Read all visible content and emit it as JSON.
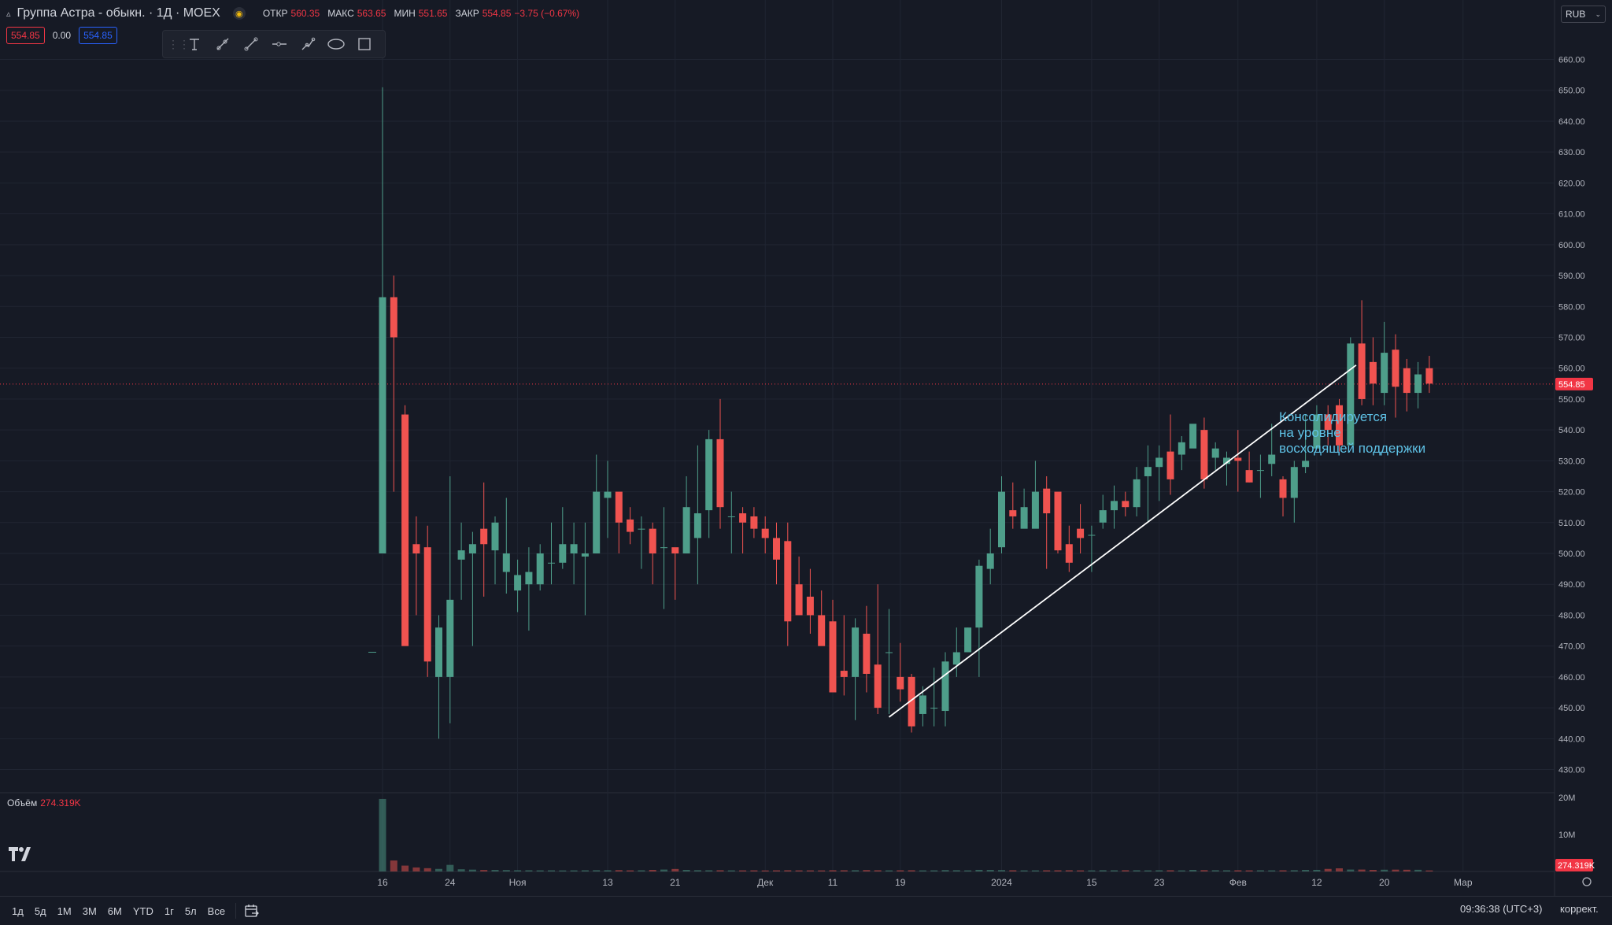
{
  "header": {
    "title": "Группа Астра - обыкн. · 1Д · MOEX",
    "ohlc": [
      {
        "k": "ОТКР",
        "v": "560.35"
      },
      {
        "k": "МАКС",
        "v": "563.65"
      },
      {
        "k": "МИН",
        "v": "551.65"
      },
      {
        "k": "ЗАКР",
        "v": "554.85"
      },
      {
        "k": "",
        "v": "−3.75 (−0.67%)"
      }
    ],
    "bid": "554.85",
    "spread": "0.00",
    "ask": "554.85",
    "currency": "RUB"
  },
  "drawing_tools": [
    "text-tool-icon",
    "ray-tool-icon",
    "trend-line-icon",
    "horizontal-ray-icon",
    "path-tool-icon",
    "ellipse-icon",
    "rectangle-icon"
  ],
  "volume": {
    "label": "Объём",
    "value": "274.319K"
  },
  "annotation": [
    "Консолидируется",
    "на уровне",
    "восходящей поддержки"
  ],
  "bottom": {
    "periods": [
      "1д",
      "5д",
      "1М",
      "3М",
      "6М",
      "YTD",
      "1г",
      "5л",
      "Все"
    ],
    "time": "09:36:38 (UTC+3)",
    "adjust": "коррект."
  },
  "colors": {
    "up": "#4e9e8a",
    "down": "#f05350",
    "bg": "#161a25",
    "grid": "#202532",
    "annotation": "#5ec1e5",
    "last_price": "#f23645"
  },
  "chart_data": {
    "type": "candlestick",
    "title": "Группа Астра - обыкн. · 1Д · MOEX",
    "ylim": [
      423,
      666
    ],
    "y_ticks": [
      430,
      440,
      450,
      460,
      470,
      480,
      490,
      500,
      510,
      520,
      530,
      540,
      550,
      560,
      570,
      580,
      590,
      600,
      610,
      620,
      630,
      640,
      650,
      660
    ],
    "x_ticks": [
      {
        "i": 0,
        "label": "16"
      },
      {
        "i": 6,
        "label": "24"
      },
      {
        "i": 12,
        "label": "Ноя"
      },
      {
        "i": 20,
        "label": "13"
      },
      {
        "i": 26,
        "label": "21"
      },
      {
        "i": 34,
        "label": "Дек"
      },
      {
        "i": 40,
        "label": "11"
      },
      {
        "i": 46,
        "label": "19"
      },
      {
        "i": 55,
        "label": "2024"
      },
      {
        "i": 63,
        "label": "15"
      },
      {
        "i": 69,
        "label": "23"
      },
      {
        "i": 76,
        "label": "Фев"
      },
      {
        "i": 83,
        "label": "12"
      },
      {
        "i": 89,
        "label": "20"
      },
      {
        "i": 96,
        "label": "Мар"
      }
    ],
    "last_price": 554.85,
    "candles": [
      [
        500,
        583,
        651,
        500
      ],
      [
        583,
        570,
        590,
        520
      ],
      [
        545,
        470,
        548,
        503
      ],
      [
        503,
        500,
        512,
        480
      ],
      [
        502,
        465,
        509,
        460
      ],
      [
        460,
        476,
        480,
        440
      ],
      [
        460,
        485,
        525,
        445
      ],
      [
        498,
        501,
        510,
        485
      ],
      [
        500,
        503,
        507,
        470
      ],
      [
        508,
        503,
        523,
        486
      ],
      [
        501,
        510,
        512,
        490
      ],
      [
        494,
        500,
        518,
        487
      ],
      [
        488,
        493,
        498,
        481
      ],
      [
        490,
        494,
        502,
        475
      ],
      [
        490,
        500,
        503,
        488
      ],
      [
        497,
        497,
        510,
        490
      ],
      [
        497,
        503,
        515,
        495
      ],
      [
        500,
        503,
        510,
        490
      ],
      [
        499,
        500,
        510,
        480
      ],
      [
        500,
        520,
        532,
        500
      ],
      [
        518,
        520,
        530,
        505
      ],
      [
        520,
        510,
        515,
        500
      ],
      [
        511,
        507,
        515,
        503
      ],
      [
        508,
        508,
        512,
        495
      ],
      [
        508,
        500,
        510,
        490
      ],
      [
        502,
        502,
        515,
        482
      ],
      [
        502,
        500,
        500,
        485
      ],
      [
        500,
        515,
        525,
        500
      ],
      [
        505,
        513,
        535,
        490
      ],
      [
        514,
        537,
        540,
        505
      ],
      [
        537,
        515,
        550,
        508
      ],
      [
        512,
        512,
        520,
        500
      ],
      [
        513,
        510,
        515,
        500
      ],
      [
        512,
        508,
        515,
        505
      ],
      [
        508,
        505,
        512,
        500
      ],
      [
        505,
        498,
        510,
        490
      ],
      [
        504,
        478,
        510,
        470
      ],
      [
        490,
        480,
        499,
        480
      ],
      [
        486,
        480,
        495,
        474
      ],
      [
        480,
        470,
        488,
        474
      ],
      [
        478,
        455,
        485,
        468
      ],
      [
        462,
        460,
        480,
        454
      ],
      [
        460,
        476,
        479,
        446
      ],
      [
        474,
        461,
        483,
        455
      ],
      [
        464,
        450,
        490,
        448
      ],
      [
        468,
        468,
        482,
        448
      ],
      [
        460,
        456,
        471,
        452
      ],
      [
        460,
        444,
        461,
        442
      ],
      [
        448,
        454,
        457,
        444
      ],
      [
        450,
        450,
        463,
        444
      ],
      [
        449,
        465,
        468,
        444
      ],
      [
        464,
        468,
        476,
        460
      ],
      [
        468,
        476,
        476,
        473
      ],
      [
        476,
        496,
        498,
        460
      ],
      [
        495,
        500,
        508,
        490
      ],
      [
        502,
        520,
        525,
        500
      ],
      [
        514,
        512,
        523,
        508
      ],
      [
        508,
        515,
        521,
        510
      ],
      [
        508,
        520,
        530,
        512
      ],
      [
        521,
        513,
        525,
        495
      ],
      [
        520,
        501,
        510,
        500
      ],
      [
        503,
        497,
        509,
        494
      ],
      [
        508,
        505,
        516,
        500
      ],
      [
        506,
        506,
        509,
        494
      ],
      [
        510,
        514,
        519,
        508
      ],
      [
        514,
        517,
        522,
        508
      ],
      [
        517,
        515,
        520,
        512
      ],
      [
        515,
        524,
        528,
        512
      ],
      [
        525,
        528,
        535,
        510
      ],
      [
        528,
        531,
        535,
        517
      ],
      [
        533,
        524,
        545,
        519
      ],
      [
        532,
        536,
        538,
        527
      ],
      [
        534,
        542,
        535,
        535
      ],
      [
        540,
        524,
        544,
        521
      ],
      [
        531,
        534,
        536,
        527
      ],
      [
        529,
        531,
        533,
        522
      ],
      [
        531,
        530,
        540,
        520
      ],
      [
        527,
        523,
        533,
        523
      ],
      [
        527,
        527,
        532,
        518
      ],
      [
        529,
        532,
        542,
        525
      ],
      [
        524,
        518,
        525,
        512
      ],
      [
        518,
        528,
        530,
        510
      ],
      [
        528,
        530,
        545,
        526
      ],
      [
        534,
        545,
        548,
        535
      ],
      [
        545,
        540,
        548,
        535
      ],
      [
        548,
        535,
        550,
        533
      ],
      [
        535,
        568,
        570,
        535
      ],
      [
        568,
        550,
        582,
        548
      ],
      [
        562,
        555,
        570,
        548
      ],
      [
        552,
        565,
        575,
        548
      ],
      [
        566,
        554,
        571,
        544
      ],
      [
        560,
        552,
        563,
        546
      ],
      [
        552,
        558,
        562,
        547
      ],
      [
        560,
        555,
        564,
        552
      ]
    ],
    "volumes_k": [
      19800,
      3000,
      1600,
      1100,
      900,
      700,
      1800,
      600,
      500,
      400,
      420,
      380,
      330,
      320,
      300,
      310,
      280,
      300,
      320,
      340,
      330,
      360,
      300,
      320,
      420,
      520,
      680,
      430,
      350,
      320,
      330,
      300,
      300,
      310,
      280,
      310,
      330,
      300,
      300,
      290,
      340,
      330,
      340,
      380,
      330,
      300,
      320,
      330,
      300,
      310,
      380,
      340,
      300,
      440,
      420,
      380,
      330,
      300,
      300,
      320,
      320,
      330,
      300,
      300,
      340,
      320,
      340,
      330,
      300,
      320,
      330,
      300,
      430,
      360,
      340,
      320,
      320,
      300,
      320,
      300,
      320,
      340,
      430,
      440,
      700,
      860,
      520,
      520,
      420,
      480,
      500,
      470,
      460,
      274
    ],
    "trendline": {
      "from": {
        "i": 45,
        "price": 447
      },
      "to": {
        "i": 86.5,
        "price": 561
      }
    }
  }
}
